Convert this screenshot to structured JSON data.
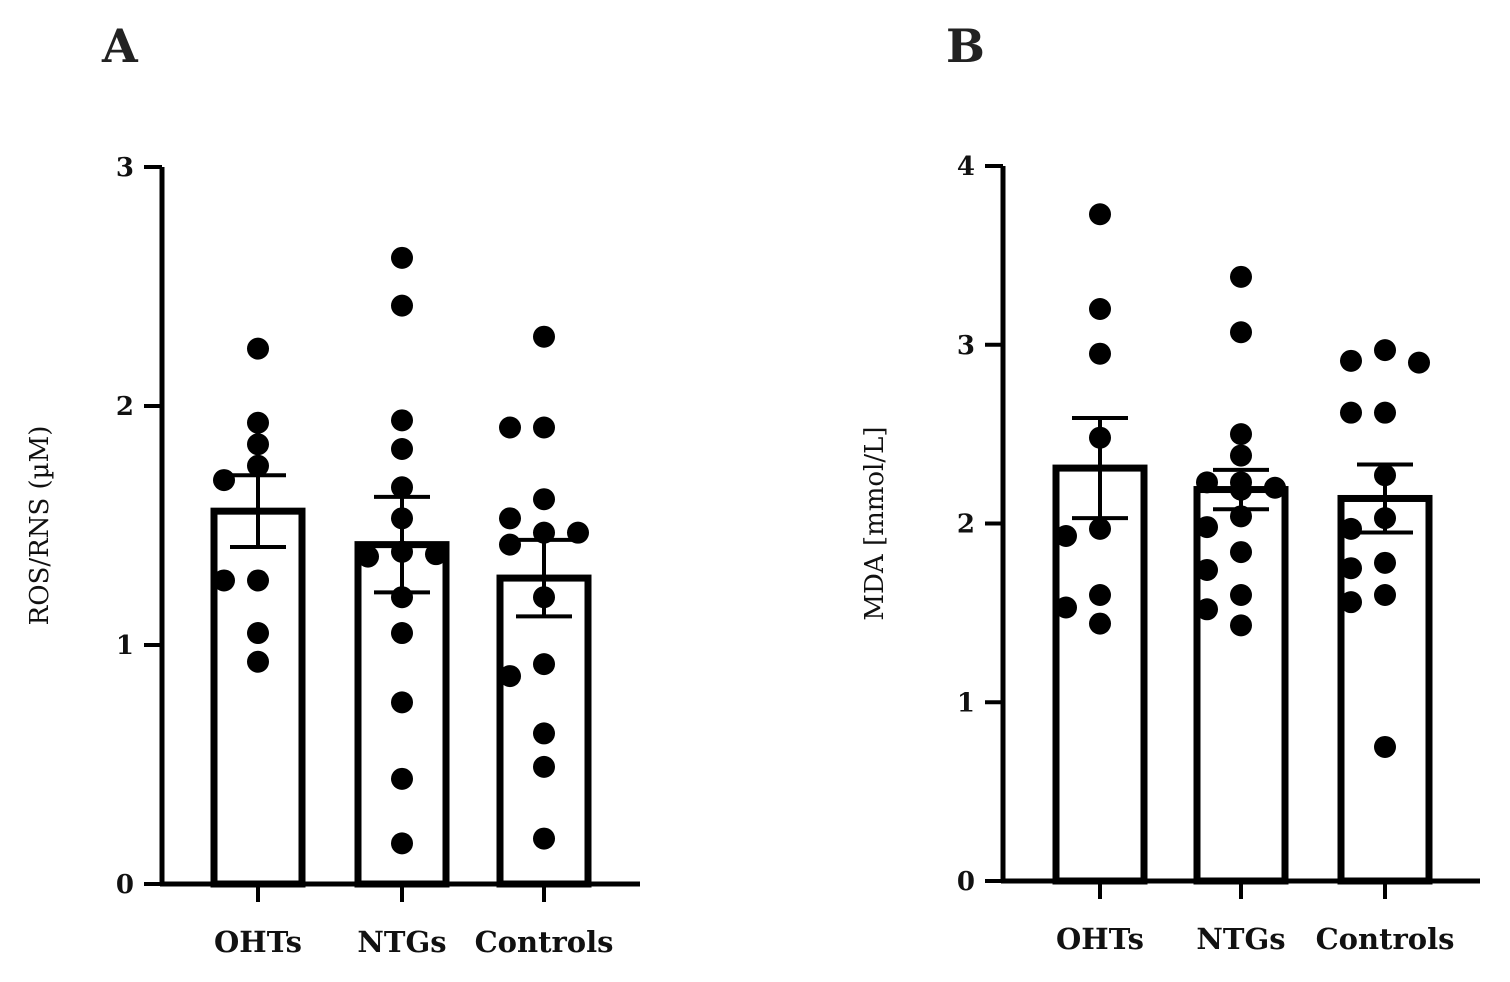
{
  "chart_data": [
    {
      "panel": "A",
      "type": "bar",
      "categories": [
        "OHTs",
        "NTGs",
        "Controls"
      ],
      "bar_values": [
        1.56,
        1.42,
        1.28
      ],
      "error_sem": [
        0.15,
        0.2,
        0.16
      ],
      "points": [
        [
          2.24,
          1.93,
          1.84,
          1.75,
          1.69,
          1.27,
          1.27,
          1.05,
          0.93
        ],
        [
          2.62,
          2.42,
          1.94,
          1.82,
          1.66,
          1.53,
          1.39,
          1.37,
          1.38,
          1.2,
          1.05,
          0.76,
          0.44,
          0.17
        ],
        [
          2.29,
          1.91,
          1.91,
          1.61,
          1.53,
          1.47,
          1.47,
          1.42,
          1.2,
          0.92,
          0.87,
          0.63,
          0.49,
          0.19
        ]
      ],
      "ylabel": "ROS/RNS  (µM)",
      "ylim": [
        0,
        3
      ],
      "yticks": [
        "0",
        "1",
        "2",
        "3"
      ],
      "title": ""
    },
    {
      "panel": "B",
      "type": "bar",
      "categories": [
        "OHTs",
        "NTGs",
        "Controls"
      ],
      "bar_values": [
        2.31,
        2.19,
        2.14
      ],
      "error_sem": [
        0.28,
        0.11,
        0.19
      ],
      "points": [
        [
          3.73,
          3.2,
          2.95,
          2.48,
          1.97,
          1.93,
          1.6,
          1.53,
          1.44
        ],
        [
          3.38,
          3.07,
          2.5,
          2.38,
          2.23,
          2.23,
          2.2,
          2.19,
          2.19,
          2.04,
          1.98,
          1.84,
          1.74,
          1.6,
          1.52,
          1.43
        ],
        [
          2.97,
          2.91,
          2.9,
          2.62,
          2.62,
          2.27,
          2.03,
          1.97,
          1.78,
          1.75,
          1.6,
          1.56,
          0.75
        ]
      ],
      "ylabel": "MDA [mmol/L]",
      "ylim": [
        0,
        4
      ],
      "yticks": [
        "0",
        "1",
        "2",
        "3",
        "4"
      ],
      "title": ""
    }
  ]
}
